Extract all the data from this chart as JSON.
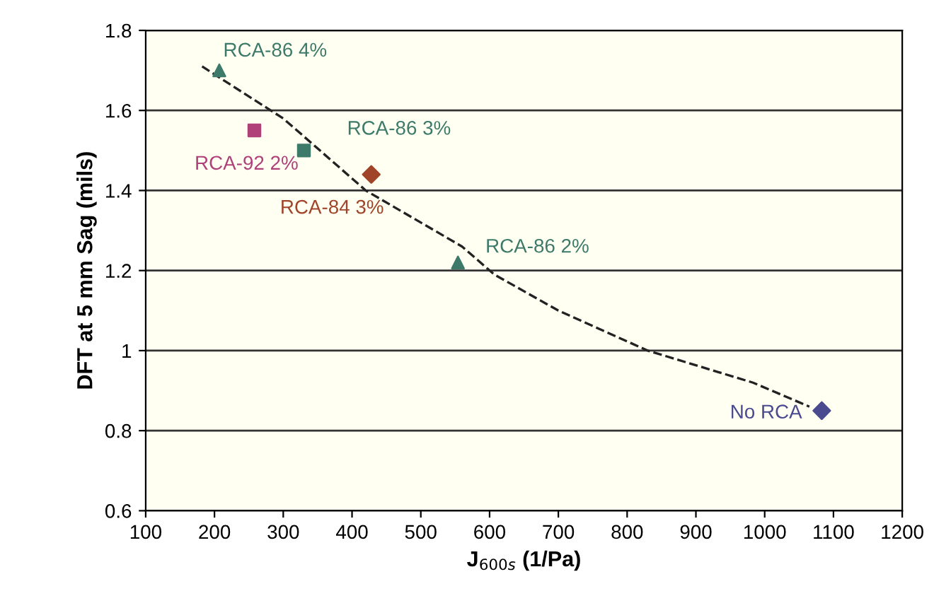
{
  "chart_data": {
    "type": "scatter",
    "xlabel": "J$_{600s}$ (1/Pa)",
    "ylabel": "DFT at 5 mm Sag (mils)",
    "xlim": [
      100,
      1200
    ],
    "xticks": [
      100,
      200,
      300,
      400,
      500,
      600,
      700,
      800,
      900,
      1000,
      1100,
      1200
    ],
    "ylim": [
      0.6,
      1.8
    ],
    "yticks": [
      0.6,
      0.8,
      1,
      1.2,
      1.4,
      1.6,
      1.8
    ],
    "grid": "y",
    "legend": false,
    "series": [
      {
        "name": "RCA-86 4%",
        "color": "#3d7a6a",
        "marker": "triangle",
        "x": [
          207
        ],
        "values": [
          1.7
        ]
      },
      {
        "name": "RCA-92 2%",
        "color": "#b0407a",
        "marker": "square",
        "x": [
          258
        ],
        "values": [
          1.55
        ]
      },
      {
        "name": "RCA-86 3%",
        "color": "#3d7a6a",
        "marker": "square",
        "x": [
          330
        ],
        "values": [
          1.5
        ]
      },
      {
        "name": "RCA-84 3%",
        "color": "#a0452a",
        "marker": "diamond",
        "x": [
          428
        ],
        "values": [
          1.44
        ]
      },
      {
        "name": "RCA-86 2%",
        "color": "#3d7a6a",
        "marker": "triangle",
        "x": [
          554
        ],
        "values": [
          1.22
        ]
      },
      {
        "name": "No RCA",
        "color": "#4a4a90",
        "marker": "diamond",
        "x": [
          1083
        ],
        "values": [
          0.85
        ]
      },
      {
        "type": "line",
        "color": "#222222",
        "line_style": "dashed",
        "marker": "none",
        "x": [
          182,
          300,
          420,
          560,
          607,
          700,
          830,
          983,
          1065
        ],
        "values": [
          1.71,
          1.58,
          1.4,
          1.26,
          1.19,
          1.1,
          1.0,
          0.92,
          0.86
        ]
      }
    ]
  }
}
